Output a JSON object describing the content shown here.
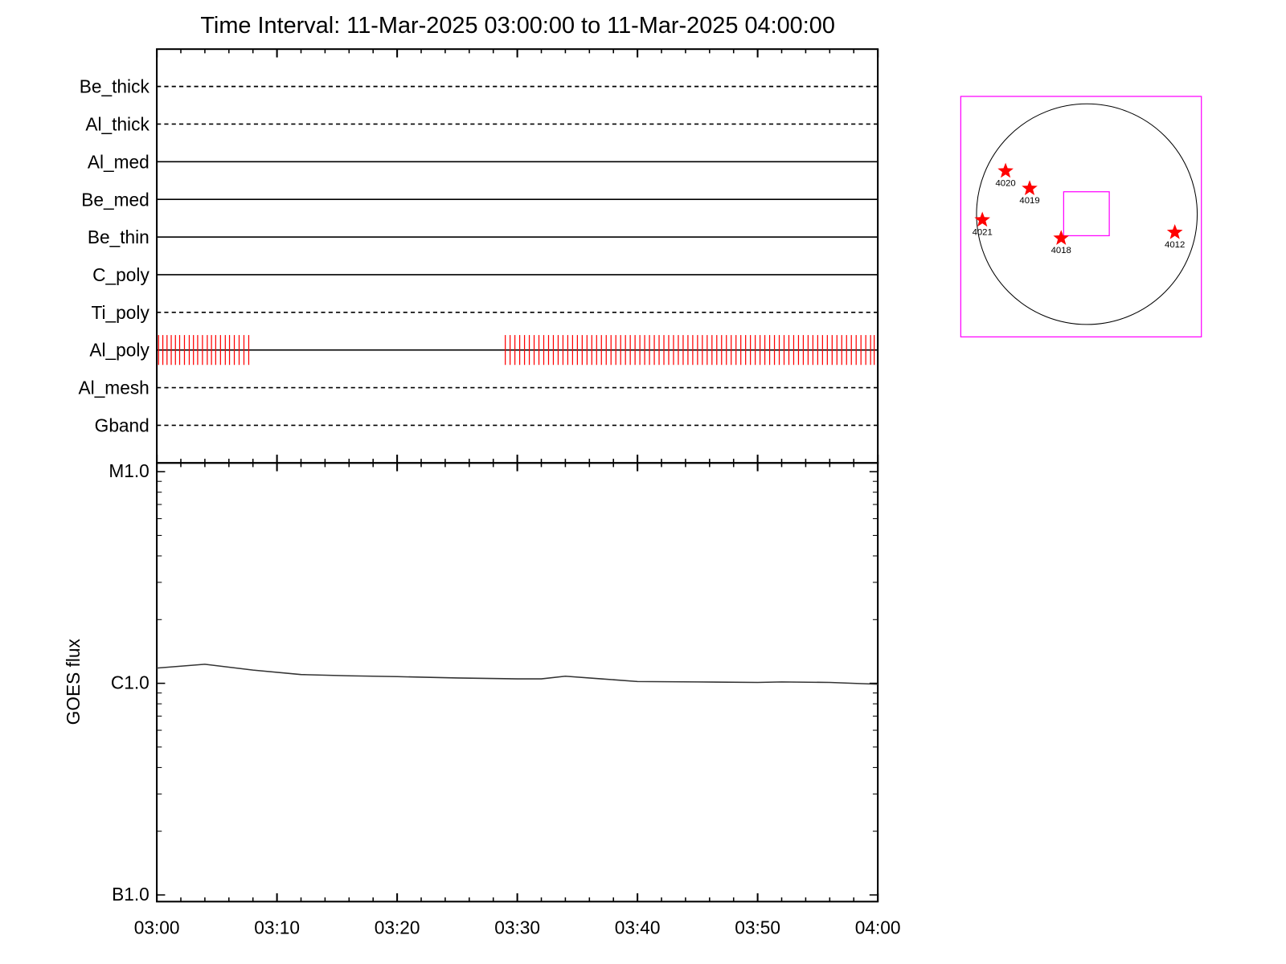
{
  "chart_data": [
    {
      "type": "timeline",
      "title": "Time Interval: 11-Mar-2025 03:00:00 to 11-Mar-2025 04:00:00",
      "xlim": [
        0,
        60
      ],
      "xticks": [
        0,
        10,
        20,
        30,
        40,
        50,
        60
      ],
      "xminor_ticks": [
        2,
        4,
        6,
        8,
        12,
        14,
        16,
        18,
        22,
        24,
        26,
        28,
        32,
        34,
        36,
        38,
        42,
        44,
        46,
        48,
        52,
        54,
        56,
        58
      ],
      "observation_color": "#ff0000",
      "rows": [
        {
          "name": "Be_thick",
          "line": "dashed",
          "observations": []
        },
        {
          "name": "Al_thick",
          "line": "dashed",
          "observations": []
        },
        {
          "name": "Al_med",
          "line": "solid",
          "observations": []
        },
        {
          "name": "Be_med",
          "line": "solid",
          "observations": []
        },
        {
          "name": "Be_thin",
          "line": "solid",
          "observations": []
        },
        {
          "name": "C_poly",
          "line": "solid",
          "observations": []
        },
        {
          "name": "Ti_poly",
          "line": "dashed",
          "observations": []
        },
        {
          "name": "Al_poly",
          "line": "solid",
          "observations": [
            0.15,
            0.5,
            0.85,
            1.2,
            1.55,
            1.9,
            2.3,
            2.7,
            3.05,
            3.4,
            3.8,
            4.2,
            4.55,
            4.9,
            5.3,
            5.7,
            6.05,
            6.45,
            6.85,
            7.25,
            7.65,
            29.0,
            29.4,
            29.8,
            30.2,
            30.6,
            31.0,
            31.4,
            31.8,
            32.2,
            32.6,
            33.0,
            33.4,
            33.8,
            34.2,
            34.6,
            35.0,
            35.4,
            35.8,
            36.2,
            36.6,
            37.0,
            37.4,
            37.8,
            38.2,
            38.6,
            39.0,
            39.4,
            39.8,
            40.2,
            40.6,
            41.0,
            41.4,
            41.8,
            42.2,
            42.6,
            43.0,
            43.4,
            43.8,
            44.2,
            44.6,
            45.0,
            45.4,
            45.8,
            46.2,
            46.6,
            47.0,
            47.4,
            47.8,
            48.2,
            48.6,
            49.0,
            49.4,
            49.8,
            50.2,
            50.6,
            51.0,
            51.4,
            51.8,
            52.2,
            52.6,
            53.0,
            53.4,
            53.8,
            54.2,
            54.6,
            55.0,
            55.4,
            55.8,
            56.2,
            56.6,
            57.0,
            57.4,
            57.8,
            58.2,
            58.6,
            59.0,
            59.4,
            59.7
          ]
        },
        {
          "name": "Al_mesh",
          "line": "dashed",
          "observations": []
        },
        {
          "name": "Gband",
          "line": "dashed",
          "observations": []
        }
      ]
    },
    {
      "type": "line",
      "ylabel": "GOES flux",
      "log_scale": true,
      "color": "#333333",
      "xlim": [
        0,
        60
      ],
      "xticks": [
        {
          "value": 0,
          "label": "03:00"
        },
        {
          "value": 10,
          "label": "03:10"
        },
        {
          "value": 20,
          "label": "03:20"
        },
        {
          "value": 30,
          "label": "03:30"
        },
        {
          "value": 40,
          "label": "03:40"
        },
        {
          "value": 50,
          "label": "03:50"
        },
        {
          "value": 60,
          "label": "04:00"
        }
      ],
      "xminor_ticks": [
        2,
        4,
        6,
        8,
        12,
        14,
        16,
        18,
        22,
        24,
        26,
        28,
        32,
        34,
        36,
        38,
        42,
        44,
        46,
        48,
        52,
        54,
        56,
        58
      ],
      "ylim": [
        9.3e-08,
        1.1e-05
      ],
      "yticks": [
        {
          "value": 1e-07,
          "label": "B1.0"
        },
        {
          "value": 1e-06,
          "label": "C1.0"
        },
        {
          "value": 1e-05,
          "label": "M1.0"
        }
      ],
      "yminor_ticks": [
        2e-07,
        3e-07,
        4e-07,
        5e-07,
        6e-07,
        7e-07,
        8e-07,
        9e-07,
        2e-06,
        3e-06,
        4e-06,
        5e-06,
        6e-06,
        7e-06,
        8e-06,
        9e-06
      ],
      "x": [
        0,
        4,
        8,
        12,
        16,
        20,
        25,
        30,
        32,
        34,
        37,
        40,
        45,
        50,
        52,
        56,
        60
      ],
      "values": [
        1.18e-06,
        1.23e-06,
        1.155e-06,
        1.1e-06,
        1.085e-06,
        1.075e-06,
        1.06e-06,
        1.05e-06,
        1.05e-06,
        1.08e-06,
        1.05e-06,
        1.02e-06,
        1.015e-06,
        1.01e-06,
        1.015e-06,
        1.01e-06,
        9.9e-07
      ]
    }
  ],
  "sun_map": {
    "box_color": "#ff00ff",
    "marker_color": "#ff0000",
    "regions": [
      "4020",
      "4019",
      "4021",
      "4018",
      "4012"
    ]
  }
}
